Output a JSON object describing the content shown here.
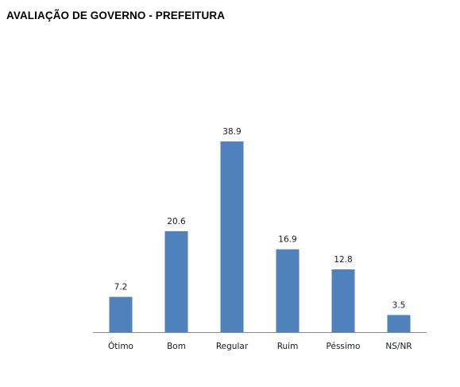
{
  "page": {
    "title": "AVALIAÇÃO DE GOVERNO - PREFEITURA"
  },
  "chart_data": {
    "type": "bar",
    "title": "",
    "xlabel": "",
    "ylabel": "",
    "categories": [
      "Ótimo",
      "Bom",
      "Regular",
      "Ruim",
      "Péssimo",
      "NS/NR"
    ],
    "values": [
      7.2,
      20.6,
      38.9,
      16.9,
      12.8,
      3.5
    ],
    "data_labels": [
      "7.2",
      "20.6",
      "38.9",
      "16.9",
      "12.8",
      "3.5"
    ],
    "ylim": [
      0,
      45
    ],
    "grid": false,
    "legend": "none",
    "bar_color": "#4F81BD",
    "axis_color": "#8C8C8C"
  }
}
